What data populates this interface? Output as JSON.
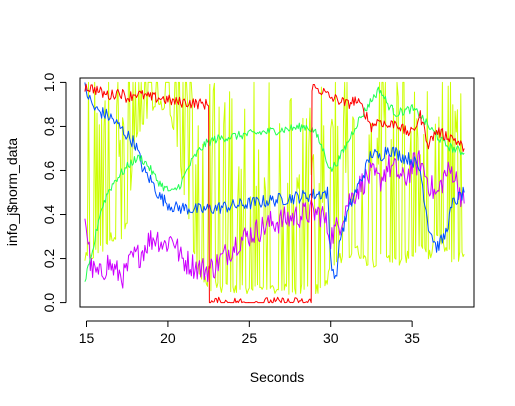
{
  "chart_data": {
    "type": "line",
    "xlabel": "Seconds",
    "ylabel": "info_j$norm_data",
    "xlim": [
      14.6,
      38.8
    ],
    "ylim": [
      -0.02,
      1.02
    ],
    "xticks": [
      15,
      20,
      25,
      30,
      35
    ],
    "yticks": [
      0.0,
      0.2,
      0.4,
      0.6,
      0.8,
      1.0
    ],
    "xtick_labels": [
      "15",
      "20",
      "25",
      "30",
      "35"
    ],
    "ytick_labels": [
      "0.0",
      "0.2",
      "0.4",
      "0.6",
      "0.8",
      "1.0"
    ],
    "grid": false,
    "legend": "none",
    "series": [
      {
        "color": "#ff0000",
        "style": "noisy",
        "noise": 0.025,
        "points": [
          [
            14.9,
            0.98
          ],
          [
            15.5,
            0.97
          ],
          [
            16,
            0.95
          ],
          [
            16.5,
            0.94
          ],
          [
            17,
            0.96
          ],
          [
            17.5,
            0.93
          ],
          [
            18,
            0.95
          ],
          [
            18.5,
            0.94
          ],
          [
            19,
            0.93
          ],
          [
            19.5,
            0.93
          ],
          [
            20,
            0.92
          ],
          [
            20.5,
            0.91
          ],
          [
            21,
            0.91
          ],
          [
            22.4,
            0.9
          ],
          [
            22.5,
            0.9
          ],
          [
            22.55,
            0.0
          ],
          [
            28.8,
            0.0
          ],
          [
            28.85,
            0.98
          ],
          [
            29.5,
            0.96
          ],
          [
            30,
            0.93
          ],
          [
            30.5,
            0.92
          ],
          [
            31,
            0.9
          ],
          [
            31.5,
            0.92
          ],
          [
            32,
            0.88
          ],
          [
            32.5,
            0.8
          ],
          [
            33,
            0.83
          ],
          [
            33.5,
            0.8
          ],
          [
            34,
            0.82
          ],
          [
            34.5,
            0.78
          ],
          [
            35,
            0.77
          ],
          [
            35.5,
            0.85
          ],
          [
            36,
            0.72
          ],
          [
            36.5,
            0.78
          ],
          [
            37,
            0.76
          ],
          [
            37.5,
            0.75
          ],
          [
            38.2,
            0.7
          ]
        ]
      },
      {
        "color": "#0050ff",
        "style": "noisy",
        "noise": 0.03,
        "points": [
          [
            14.9,
            0.98
          ],
          [
            15.2,
            0.92
          ],
          [
            15.5,
            0.88
          ],
          [
            16,
            0.86
          ],
          [
            16.5,
            0.84
          ],
          [
            17,
            0.8
          ],
          [
            17.5,
            0.76
          ],
          [
            18,
            0.72
          ],
          [
            18.5,
            0.6
          ],
          [
            19,
            0.55
          ],
          [
            19.5,
            0.48
          ],
          [
            20,
            0.45
          ],
          [
            20.5,
            0.43
          ],
          [
            21,
            0.43
          ],
          [
            22,
            0.42
          ],
          [
            23,
            0.43
          ],
          [
            24,
            0.44
          ],
          [
            25,
            0.45
          ],
          [
            26,
            0.46
          ],
          [
            27,
            0.47
          ],
          [
            28,
            0.48
          ],
          [
            29,
            0.49
          ],
          [
            29.8,
            0.5
          ],
          [
            30,
            0.2
          ],
          [
            30.3,
            0.1
          ],
          [
            30.6,
            0.3
          ],
          [
            31,
            0.4
          ],
          [
            31.5,
            0.5
          ],
          [
            32,
            0.58
          ],
          [
            32.5,
            0.68
          ],
          [
            33,
            0.66
          ],
          [
            33.5,
            0.7
          ],
          [
            34,
            0.68
          ],
          [
            34.5,
            0.66
          ],
          [
            35,
            0.65
          ],
          [
            35.5,
            0.6
          ],
          [
            36,
            0.35
          ],
          [
            36.5,
            0.25
          ],
          [
            37,
            0.3
          ],
          [
            37.5,
            0.45
          ],
          [
            38.2,
            0.5
          ]
        ]
      },
      {
        "color": "#22ff55",
        "style": "noisy",
        "noise": 0.02,
        "points": [
          [
            14.9,
            0.1
          ],
          [
            15.3,
            0.2
          ],
          [
            15.8,
            0.4
          ],
          [
            16.3,
            0.5
          ],
          [
            16.8,
            0.56
          ],
          [
            17.3,
            0.6
          ],
          [
            17.8,
            0.64
          ],
          [
            18.3,
            0.66
          ],
          [
            18.8,
            0.62
          ],
          [
            19.3,
            0.56
          ],
          [
            19.8,
            0.52
          ],
          [
            20.3,
            0.5
          ],
          [
            20.8,
            0.54
          ],
          [
            21.3,
            0.62
          ],
          [
            21.8,
            0.68
          ],
          [
            22.3,
            0.72
          ],
          [
            22.8,
            0.74
          ],
          [
            23.5,
            0.75
          ],
          [
            24.5,
            0.76
          ],
          [
            25.5,
            0.77
          ],
          [
            26.5,
            0.78
          ],
          [
            27.5,
            0.79
          ],
          [
            28.5,
            0.8
          ],
          [
            29,
            0.78
          ],
          [
            29.5,
            0.7
          ],
          [
            30,
            0.6
          ],
          [
            30.5,
            0.65
          ],
          [
            31,
            0.72
          ],
          [
            31.5,
            0.8
          ],
          [
            32,
            0.86
          ],
          [
            32.5,
            0.92
          ],
          [
            33,
            0.97
          ],
          [
            33.5,
            0.9
          ],
          [
            34,
            0.86
          ],
          [
            34.5,
            0.87
          ],
          [
            35,
            0.88
          ],
          [
            35.5,
            0.85
          ],
          [
            36,
            0.8
          ],
          [
            36.5,
            0.76
          ],
          [
            37,
            0.72
          ],
          [
            37.5,
            0.7
          ],
          [
            38.2,
            0.68
          ]
        ]
      },
      {
        "color": "#cc00ff",
        "style": "noisy",
        "noise": 0.06,
        "points": [
          [
            14.9,
            0.4
          ],
          [
            15.3,
            0.15
          ],
          [
            15.8,
            0.12
          ],
          [
            16.3,
            0.18
          ],
          [
            16.8,
            0.14
          ],
          [
            17.3,
            0.12
          ],
          [
            17.8,
            0.2
          ],
          [
            18.3,
            0.22
          ],
          [
            18.8,
            0.28
          ],
          [
            19.3,
            0.3
          ],
          [
            19.8,
            0.26
          ],
          [
            20.3,
            0.3
          ],
          [
            20.8,
            0.2
          ],
          [
            21.3,
            0.18
          ],
          [
            21.8,
            0.16
          ],
          [
            22.3,
            0.15
          ],
          [
            22.8,
            0.16
          ],
          [
            23.3,
            0.2
          ],
          [
            23.8,
            0.24
          ],
          [
            24.3,
            0.28
          ],
          [
            24.8,
            0.3
          ],
          [
            25.3,
            0.32
          ],
          [
            25.8,
            0.34
          ],
          [
            26.3,
            0.36
          ],
          [
            26.8,
            0.37
          ],
          [
            27.3,
            0.38
          ],
          [
            27.8,
            0.39
          ],
          [
            28.3,
            0.4
          ],
          [
            28.8,
            0.41
          ],
          [
            29.5,
            0.4
          ],
          [
            30,
            0.3
          ],
          [
            30.5,
            0.35
          ],
          [
            31,
            0.45
          ],
          [
            31.5,
            0.5
          ],
          [
            32,
            0.55
          ],
          [
            32.5,
            0.58
          ],
          [
            33,
            0.55
          ],
          [
            33.5,
            0.62
          ],
          [
            34,
            0.6
          ],
          [
            34.5,
            0.55
          ],
          [
            35,
            0.62
          ],
          [
            35.5,
            0.64
          ],
          [
            36,
            0.55
          ],
          [
            36.5,
            0.48
          ],
          [
            37,
            0.58
          ],
          [
            37.5,
            0.6
          ],
          [
            38.2,
            0.45
          ]
        ]
      },
      {
        "color": "#ccff00",
        "style": "spiky",
        "points": [
          [
            14.9,
            0.2
          ],
          [
            15.5,
            0.22
          ],
          [
            16,
            0.25
          ],
          [
            16.5,
            0.3
          ],
          [
            17,
            0.3
          ],
          [
            17.5,
            0.35
          ],
          [
            18,
            0.75
          ],
          [
            18.5,
            0.8
          ],
          [
            19,
            0.85
          ],
          [
            19.5,
            0.9
          ],
          [
            20,
            0.88
          ],
          [
            20.5,
            0.75
          ],
          [
            21,
            0.5
          ],
          [
            21.5,
            0.25
          ],
          [
            22,
            0.12
          ],
          [
            22.5,
            0.08
          ],
          [
            23,
            0.07
          ],
          [
            24,
            0.06
          ],
          [
            25,
            0.06
          ],
          [
            26,
            0.06
          ],
          [
            27,
            0.06
          ],
          [
            28,
            0.06
          ],
          [
            28.8,
            0.07
          ],
          [
            29.5,
            0.05
          ],
          [
            30,
            0.15
          ],
          [
            30.5,
            0.2
          ],
          [
            31,
            0.2
          ],
          [
            31.5,
            0.25
          ],
          [
            32,
            0.2
          ],
          [
            32.5,
            0.18
          ],
          [
            33,
            0.2
          ],
          [
            33.5,
            0.22
          ],
          [
            34,
            0.18
          ],
          [
            34.5,
            0.2
          ],
          [
            35,
            0.22
          ],
          [
            35.5,
            0.25
          ],
          [
            36,
            0.2
          ],
          [
            36.5,
            0.3
          ],
          [
            37,
            0.25
          ],
          [
            37.5,
            0.2
          ],
          [
            38.2,
            0.22
          ]
        ]
      }
    ]
  }
}
